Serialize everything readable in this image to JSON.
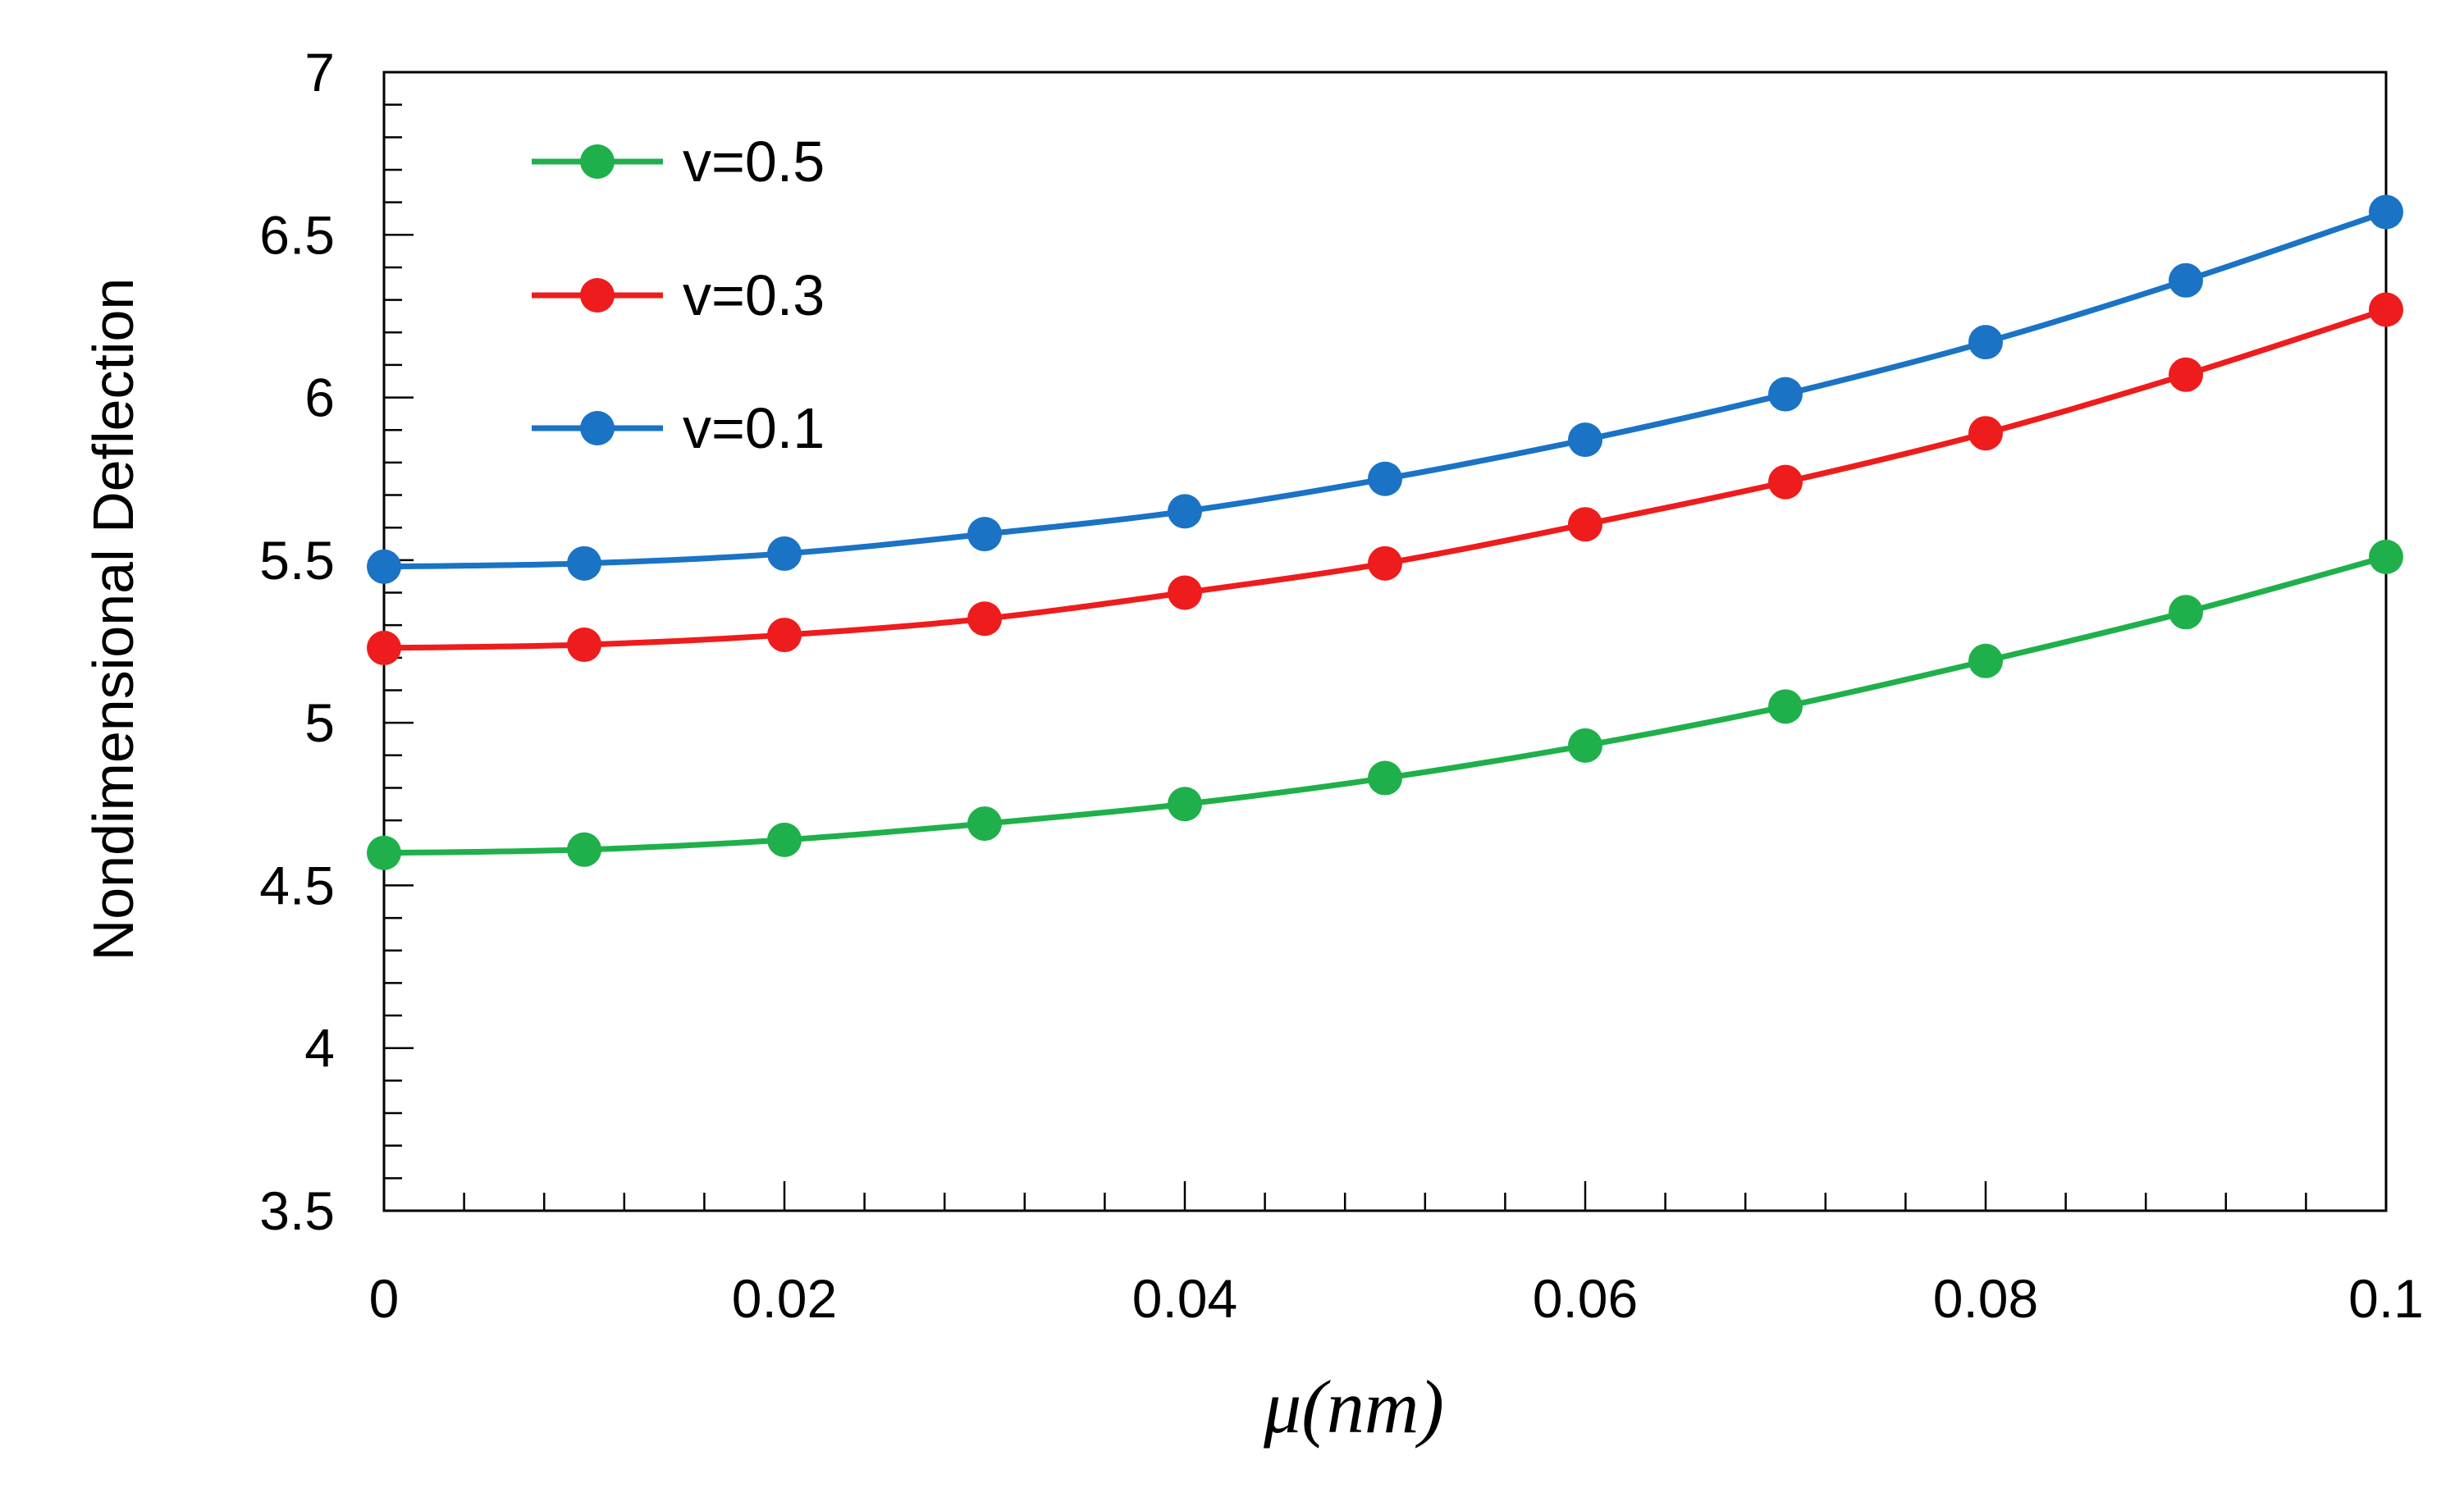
{
  "chart_data": {
    "type": "line",
    "title": "",
    "xlabel": "μ(nm)",
    "ylabel": "Nondimensional Deflection",
    "xlim": [
      0,
      0.1
    ],
    "ylim": [
      3.5,
      7
    ],
    "x": [
      0,
      0.01,
      0.02,
      0.03,
      0.04,
      0.05,
      0.06,
      0.07,
      0.08,
      0.09,
      0.1
    ],
    "xticks": [
      0,
      0.02,
      0.04,
      0.06,
      0.08,
      0.1
    ],
    "xtick_labels": [
      "0",
      "0.02",
      "0.04",
      "0.06",
      "0.08",
      "0.1"
    ],
    "yticks": [
      3.5,
      4,
      4.5,
      5,
      5.5,
      6,
      6.5,
      7
    ],
    "ytick_labels": [
      "3.5",
      "4",
      "4.5",
      "5",
      "5.5",
      "6",
      "6.5",
      "7"
    ],
    "grid": false,
    "legend_position": "top-left",
    "series": [
      {
        "name": "v=0.5",
        "color": "#1fb04b",
        "values": [
          4.6,
          4.61,
          4.64,
          4.69,
          4.75,
          4.83,
          4.93,
          5.05,
          5.19,
          5.34,
          5.51
        ]
      },
      {
        "name": "v=0.3",
        "color": "#ee1c1c",
        "values": [
          5.23,
          5.24,
          5.27,
          5.32,
          5.4,
          5.49,
          5.61,
          5.74,
          5.89,
          6.07,
          6.27
        ]
      },
      {
        "name": "v=0.1",
        "color": "#1a73c4",
        "values": [
          5.48,
          5.49,
          5.52,
          5.58,
          5.65,
          5.75,
          5.87,
          6.01,
          6.17,
          6.36,
          6.57
        ]
      }
    ]
  }
}
